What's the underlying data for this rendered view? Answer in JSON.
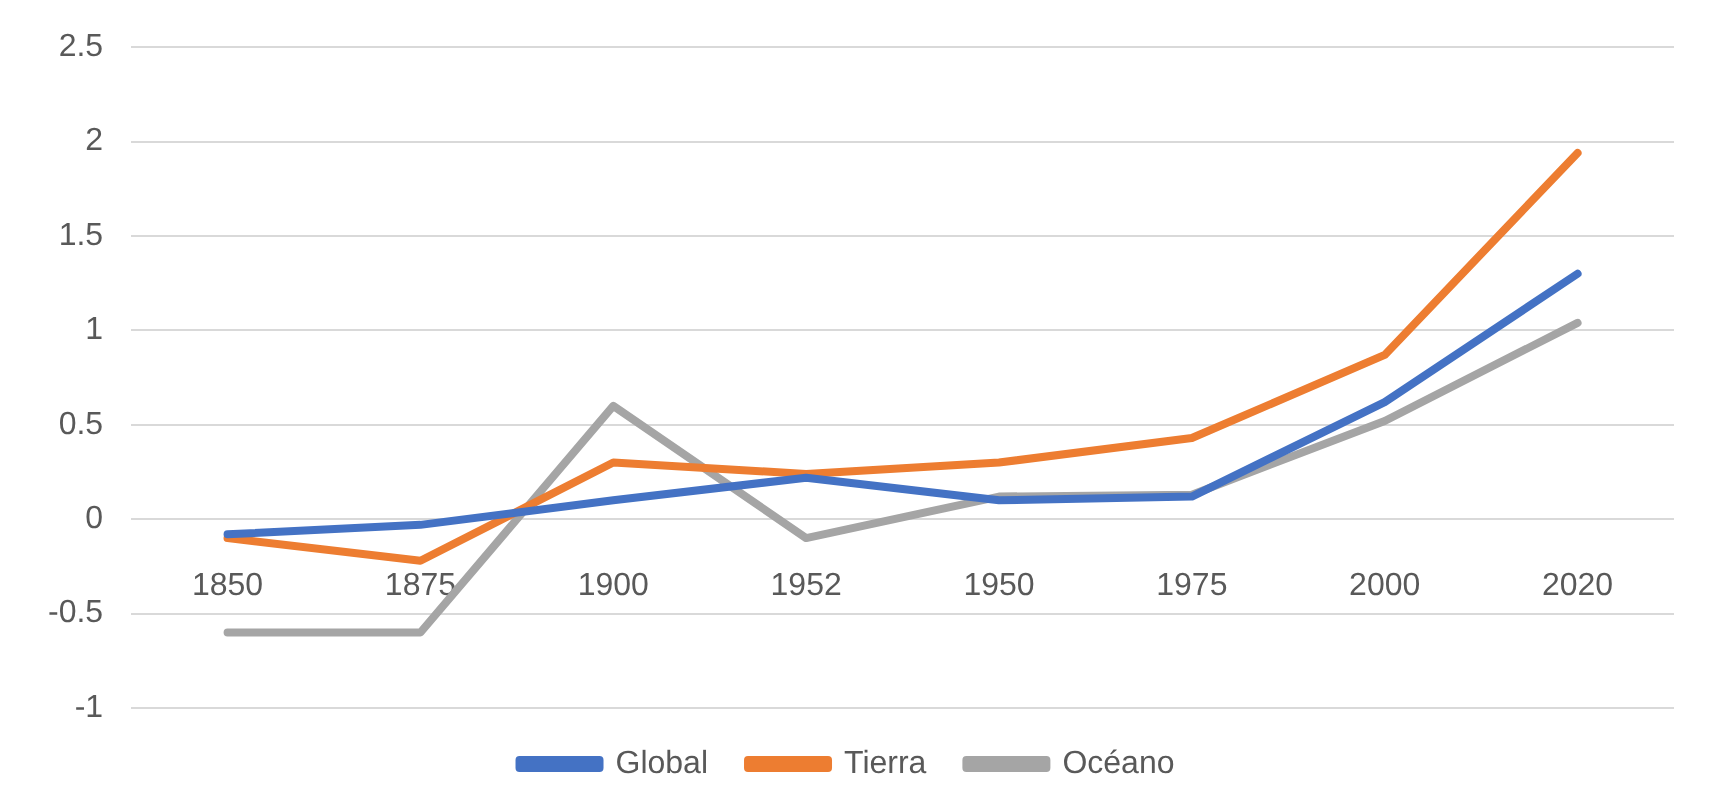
{
  "chart_data": {
    "type": "line",
    "categories": [
      "1850",
      "1875",
      "1900",
      "1952",
      "1950",
      "1975",
      "2000",
      "2020"
    ],
    "series": [
      {
        "name": "Global",
        "color": "#4472c4",
        "values": [
          -0.08,
          -0.03,
          0.1,
          0.22,
          0.1,
          0.12,
          0.62,
          1.3
        ]
      },
      {
        "name": "Tierra",
        "color": "#ed7d31",
        "values": [
          -0.1,
          -0.22,
          0.3,
          0.24,
          0.3,
          0.43,
          0.87,
          1.94
        ]
      },
      {
        "name": "Océano",
        "color": "#a5a5a5",
        "values": [
          -0.6,
          -0.6,
          0.6,
          -0.1,
          0.12,
          0.13,
          0.52,
          1.04
        ]
      }
    ],
    "ylim": [
      -1,
      2.5
    ],
    "yticks": [
      -1,
      -0.5,
      0,
      0.5,
      1,
      1.5,
      2,
      2.5
    ],
    "grid": "y",
    "legend": "bottom",
    "marker": "none",
    "line_style": "solid"
  }
}
